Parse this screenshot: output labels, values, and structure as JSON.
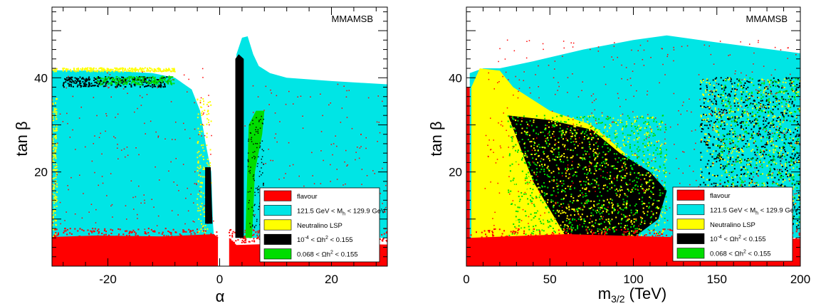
{
  "chart_data": [
    {
      "type": "scatter",
      "watermark": "MMAMSB",
      "xlabel": "α",
      "ylabel": "tan β",
      "xlim": [
        -30,
        30
      ],
      "ylim": [
        0,
        55
      ],
      "xticks": [
        -20,
        0,
        20
      ],
      "yticks": [
        20,
        40
      ],
      "grid": false,
      "legend_position": "bottom-right",
      "regions": [
        {
          "name": "flavour",
          "band": "tanβ < ~6 for all α (missing near α ≈ 0)"
        },
        {
          "name": "121.5 GeV < M_h < 129.9 GeV",
          "left_lobe": "α from -30 to ~-1, tanβ up to ~42",
          "right_lobe": "α from ~3 to 30, tanβ peak ~49 at α≈5, ~38 at α=30"
        },
        {
          "name": "Neutralino LSP",
          "extent": "sparse thin edges"
        },
        {
          "name": "10^-4 < Ωh^2 < 0.155",
          "strips": [
            "α ≈ -2, tanβ 9–21",
            "α ≈ 3.5, tanβ 6–44",
            "tanβ ≈ 38–40 for α -28 to -10"
          ]
        },
        {
          "name": "0.068 < Ωh^2 < 0.155",
          "strips": [
            "α ≈ 5–8, tanβ 6–33",
            "tanβ ≈ 39 for α -22 to -8"
          ]
        }
      ]
    },
    {
      "type": "scatter",
      "watermark": "MMAMSB",
      "xlabel": "m_3/2 (TeV)",
      "ylabel": "tan β",
      "xlim": [
        0,
        200
      ],
      "ylim": [
        0,
        55
      ],
      "xticks": [
        0,
        50,
        100,
        150,
        200
      ],
      "yticks": [
        20,
        40
      ],
      "grid": false,
      "legend_position": "bottom-right",
      "regions": [
        {
          "name": "flavour",
          "band": "tanβ < ~6 for all m_3/2; strip at m_3/2 < 2 up to tanβ ~38"
        },
        {
          "name": "121.5 GeV < M_h < 129.9 GeV",
          "extent": "upper envelope ~42 at m_3/2=20, peak ~49 at m_3/2≈120, ~45 at 200"
        },
        {
          "name": "Neutralino LSP",
          "extent": "m_3/2 from ~3 to ~95, tanβ 6–42"
        },
        {
          "name": "10^-4 < Ωh^2 < 0.155",
          "extent": "triangular region m_3/2 25–120, tanβ 6–32; scattered above 150"
        },
        {
          "name": "0.068 < Ωh^2 < 0.155",
          "extent": "mixed within the black region"
        }
      ]
    }
  ],
  "colors": {
    "flavour": "#ff0000",
    "higgs": "#00e5e5",
    "lsp": "#ffff00",
    "relic_wide": "#000000",
    "relic_narrow": "#00dd00"
  },
  "legend": [
    {
      "text": "flavour",
      "color": "#ff0000"
    },
    {
      "text": "121.5 GeV < M",
      "sub": "h",
      "text2": " < 129.9 GeV",
      "color": "#00e5e5"
    },
    {
      "text": "Neutralino LSP",
      "color": "#ffff00"
    },
    {
      "text": "10",
      "sup": "-4",
      "text2": " < Ωh",
      "sup2": "2",
      "text3": " < 0.155",
      "color": "#000000"
    },
    {
      "text": "0.068 < Ωh",
      "sup": "2",
      "text2": " < 0.155",
      "color": "#00dd00"
    }
  ]
}
